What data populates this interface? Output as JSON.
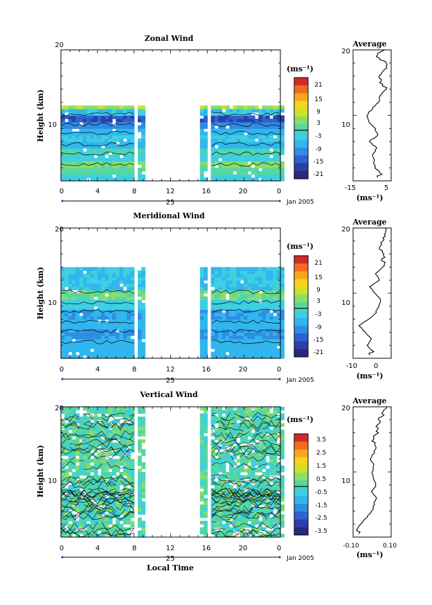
{
  "chart_data": [
    {
      "type": "heatmap",
      "title": "Zonal Wind",
      "ylabel": "Height (km)",
      "yticks": [
        "20",
        "10"
      ],
      "ylim": [
        0,
        20
      ],
      "xlim": [
        0,
        24
      ],
      "xticks": [
        "0",
        "4",
        "8",
        "12",
        "16",
        "20",
        "0"
      ],
      "date_label": "25",
      "date_suffix": "Jan 2005",
      "colorbar_unit": "(ms⁻¹)",
      "colorbar_ticks": [
        "21",
        "15",
        "9",
        "3",
        "-3",
        "-9",
        "-15",
        "-21"
      ],
      "colorbar_range": [
        -24,
        24
      ],
      "palette": [
        "#d22a2a",
        "#f26b1f",
        "#f9a61e",
        "#f5d31e",
        "#cde12a",
        "#89dd6a",
        "#56d6a2",
        "#3ecfe0",
        "#31b6ee",
        "#2f8de4",
        "#2e62cf",
        "#2d3ea9",
        "#262a7c"
      ],
      "profile": {
        "title": "Average",
        "xticks": [
          "-15",
          "5"
        ],
        "xlim": [
          -15,
          5
        ],
        "unit": "(ms⁻¹)",
        "yticks": [
          "20",
          "10"
        ],
        "heights": [
          1,
          2,
          3,
          4,
          5,
          6,
          7,
          8,
          9,
          10,
          11,
          12,
          13,
          14,
          15,
          16,
          17,
          18,
          19,
          20
        ],
        "values": [
          0.0,
          -3.5,
          -4.0,
          -4.5,
          -2.5,
          -6.5,
          -2.0,
          -3.5,
          -6.5,
          -8.0,
          -5.0,
          -1.5,
          -0.8,
          2.5,
          -0.5,
          -1.5,
          2.5,
          3.5,
          -3.0,
          1.5
        ]
      },
      "data_gaps": [
        [
          8.2,
          8.6
        ],
        [
          9.4,
          15.3
        ],
        [
          16.0,
          16.3
        ]
      ]
    },
    {
      "type": "heatmap",
      "title": "Meridional Wind",
      "ylabel": "Height (km)",
      "yticks": [
        "20",
        "10"
      ],
      "ylim": [
        0,
        20
      ],
      "xlim": [
        0,
        24
      ],
      "xticks": [
        "0",
        "4",
        "8",
        "12",
        "16",
        "20",
        "0"
      ],
      "date_label": "25",
      "date_suffix": "Jan 2005",
      "colorbar_unit": "(ms⁻¹)",
      "colorbar_ticks": [
        "21",
        "15",
        "9",
        "3",
        "-3",
        "-9",
        "-15",
        "-21"
      ],
      "colorbar_range": [
        -24,
        24
      ],
      "profile": {
        "title": "Average",
        "xticks": [
          "-10",
          "0"
        ],
        "xlim": [
          -10,
          5
        ],
        "unit": "(ms⁻¹)",
        "yticks": [
          "20",
          "10"
        ],
        "heights": [
          1,
          2,
          3,
          4,
          5,
          6,
          7,
          8,
          9,
          10,
          11,
          12,
          13,
          14,
          15,
          16,
          17,
          18,
          19,
          20
        ],
        "values": [
          -2.0,
          -4.5,
          -3.0,
          -5.0,
          -7.5,
          -4.0,
          -1.0,
          0.0,
          1.0,
          -1.5,
          -3.5,
          0.5,
          -1.0,
          1.5,
          2.0,
          2.5,
          0.0,
          1.0,
          2.5,
          3.0
        ]
      },
      "data_gaps": [
        [
          8.2,
          8.6
        ],
        [
          9.4,
          15.3
        ],
        [
          16.0,
          16.3
        ]
      ]
    },
    {
      "type": "heatmap",
      "title": "Vertical Wind",
      "ylabel": "Height (km)",
      "xlabel": "Local Time",
      "yticks": [
        "20",
        "10"
      ],
      "ylim": [
        0,
        20
      ],
      "xlim": [
        0,
        24
      ],
      "xticks": [
        "0",
        "4",
        "8",
        "12",
        "16",
        "20",
        "0"
      ],
      "date_label": "25",
      "date_suffix": "Jan 2005",
      "colorbar_unit": "(ms⁻¹)",
      "colorbar_ticks": [
        "3.5",
        "2.5",
        "1.5",
        "0.5",
        "-0.5",
        "-1.5",
        "-2.5",
        "-3.5"
      ],
      "colorbar_range": [
        -4,
        4
      ],
      "profile": {
        "title": "Average",
        "xticks": [
          "-0.10",
          "0.10"
        ],
        "xlim": [
          -0.1,
          0.1
        ],
        "unit": "(ms⁻¹)",
        "yticks": [
          "20",
          "10"
        ],
        "heights": [
          1,
          2,
          3,
          4,
          5,
          6,
          7,
          8,
          9,
          10,
          11,
          12,
          13,
          14,
          15,
          16,
          17,
          18,
          19,
          20
        ],
        "values": [
          -0.08,
          -0.06,
          -0.03,
          0.0,
          0.01,
          0.02,
          0.0,
          0.02,
          0.01,
          0.0,
          0.01,
          -0.01,
          0.01,
          0.02,
          0.0,
          0.03,
          0.02,
          0.04,
          0.06,
          0.07
        ]
      },
      "data_gaps": [
        [
          8.2,
          8.6
        ],
        [
          9.4,
          15.3
        ],
        [
          16.0,
          16.3
        ]
      ]
    }
  ]
}
